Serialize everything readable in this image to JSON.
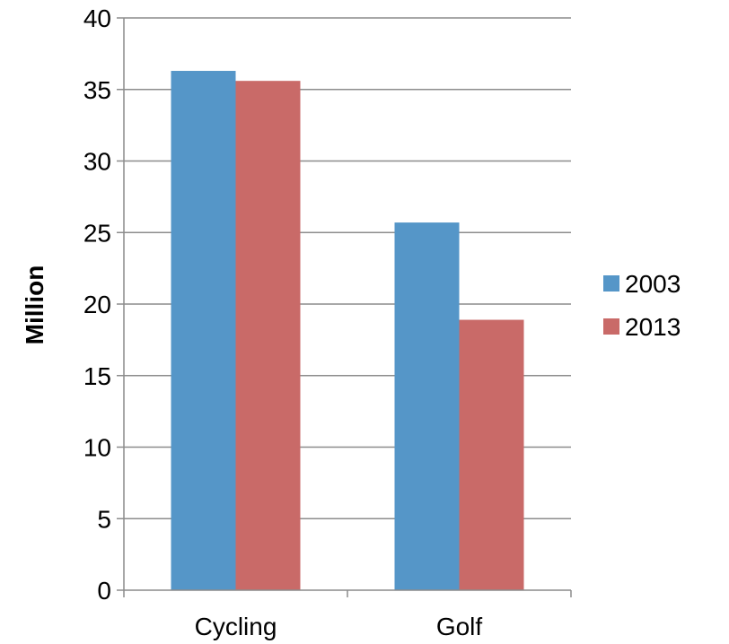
{
  "chart_data": {
    "type": "bar",
    "categories": [
      "Cycling",
      "Golf"
    ],
    "series": [
      {
        "name": "2003",
        "values": [
          36.3,
          25.7
        ],
        "color": "#5596c8"
      },
      {
        "name": "2013",
        "values": [
          35.6,
          18.9
        ],
        "color": "#c96a68"
      }
    ],
    "title": "",
    "xlabel": "",
    "ylabel": "Million",
    "ylim": [
      0,
      40
    ],
    "yticks": [
      0,
      5,
      10,
      15,
      20,
      25,
      30,
      35,
      40
    ],
    "grid": true,
    "legend_position": "right",
    "gridline_color": "#8c8c8c",
    "axis_color": "#8c8c8c"
  }
}
